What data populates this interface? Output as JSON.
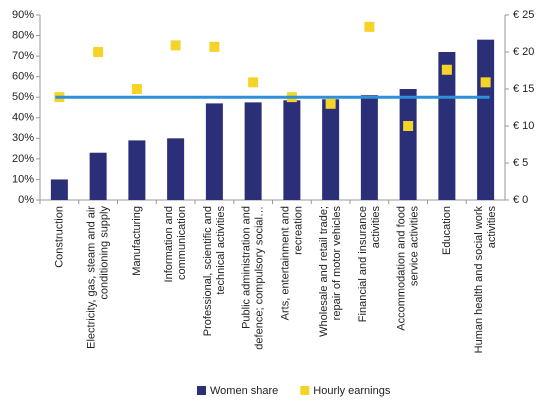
{
  "chart_data": {
    "type": "bar_line",
    "categories": [
      "Construction",
      "Electricity, gas, steam and air\nconditioning supply",
      "Manufacturing",
      "Information and\ncommunication",
      "Professional, scientific and\ntechnical activities",
      "Public administration and\ndefence; compulsory social…",
      "Arts, entertainment and\nrecreation",
      "Wholesale and retail trade;\nrepair of motor vehicles",
      "Financial and insurance\nactivities",
      "Accommodation and food\nservice activities",
      "Education",
      "Human health and social work\nactivities"
    ],
    "series": [
      {
        "name": "Women share",
        "color": "#2b2f77",
        "values": [
          10,
          23,
          29,
          30,
          47,
          47.5,
          48.5,
          49,
          51,
          54,
          72,
          78
        ]
      },
      {
        "name": "Hourly earnings",
        "color": "#f5d328",
        "axis": "y2",
        "values": [
          13.9,
          20.0,
          15.0,
          20.9,
          20.7,
          15.9,
          13.9,
          13.0,
          23.4,
          10.0,
          17.6,
          15.9
        ]
      }
    ],
    "reference_line": {
      "value": 50,
      "color": "#2f8fd8"
    },
    "ylim": [
      0,
      90
    ],
    "yticks": [
      {
        "value": 0,
        "label": "0%"
      },
      {
        "value": 10,
        "label": "10%"
      },
      {
        "value": 20,
        "label": "20%"
      },
      {
        "value": 30,
        "label": "30%"
      },
      {
        "value": 40,
        "label": "40%"
      },
      {
        "value": 50,
        "label": "50%"
      },
      {
        "value": 60,
        "label": "60%"
      },
      {
        "value": 70,
        "label": "70%"
      },
      {
        "value": 80,
        "label": "80%"
      },
      {
        "value": 90,
        "label": "90%"
      }
    ],
    "y2lim": [
      0,
      25
    ],
    "y2ticks": [
      {
        "value": 0,
        "label": "€ 0"
      },
      {
        "value": 5,
        "label": "€ 5"
      },
      {
        "value": 10,
        "label": "€ 10"
      },
      {
        "value": 15,
        "label": "€ 15"
      },
      {
        "value": 20,
        "label": "€ 20"
      },
      {
        "value": 25,
        "label": "€ 25"
      }
    ],
    "legend": "bottom"
  }
}
